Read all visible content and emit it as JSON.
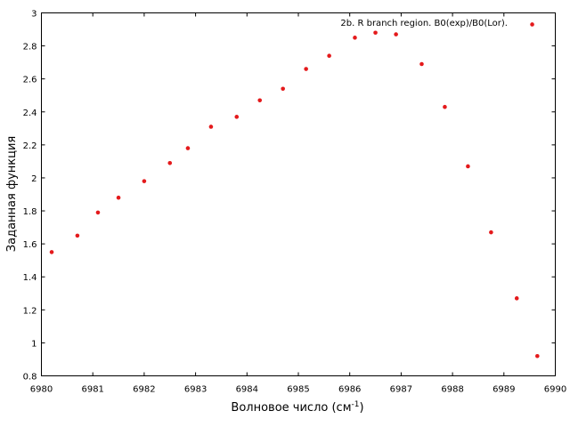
{
  "chart_data": {
    "type": "scatter",
    "xlabel": "Волновое число (см",
    "xlabel_sup": "-1",
    "xlabel_end": ")",
    "ylabel": "Заданная функция",
    "xlim": [
      6980,
      6990
    ],
    "ylim": [
      0.8,
      3.0
    ],
    "x_ticks": [
      6980,
      6981,
      6982,
      6983,
      6984,
      6985,
      6986,
      6987,
      6988,
      6989,
      6990
    ],
    "y_ticks": [
      0.8,
      1.0,
      1.2,
      1.4,
      1.6,
      1.8,
      2.0,
      2.2,
      2.4,
      2.6,
      2.8,
      3.0
    ],
    "x_tick_labels": [
      "6980",
      "6981",
      "6982",
      "6983",
      "6984",
      "6985",
      "6986",
      "6987",
      "6988",
      "6989",
      "6990"
    ],
    "y_tick_labels": [
      "0.8",
      "1",
      "1.2",
      "1.4",
      "1.6",
      "1.8",
      "2",
      "2.2",
      "2.4",
      "2.6",
      "2.8",
      "3"
    ],
    "grid": false,
    "legend_position": "top-right",
    "series": [
      {
        "name": "2b. R branch region. B0(exp)/B0(Lor).",
        "color": "#e41a1c",
        "x": [
          6980.2,
          6980.7,
          6981.1,
          6981.5,
          6982.0,
          6982.5,
          6982.85,
          6983.3,
          6983.8,
          6984.25,
          6984.7,
          6985.15,
          6985.6,
          6986.1,
          6986.5,
          6986.9,
          6987.4,
          6987.85,
          6988.3,
          6988.75,
          6989.25,
          6989.65
        ],
        "y": [
          1.55,
          1.65,
          1.79,
          1.88,
          1.98,
          2.09,
          2.18,
          2.31,
          2.37,
          2.47,
          2.54,
          2.66,
          2.74,
          2.85,
          2.88,
          2.87,
          2.69,
          2.43,
          2.07,
          1.67,
          1.27,
          0.92
        ]
      }
    ],
    "legend_marker_x": 6989.55,
    "legend_marker_y": 2.93
  }
}
